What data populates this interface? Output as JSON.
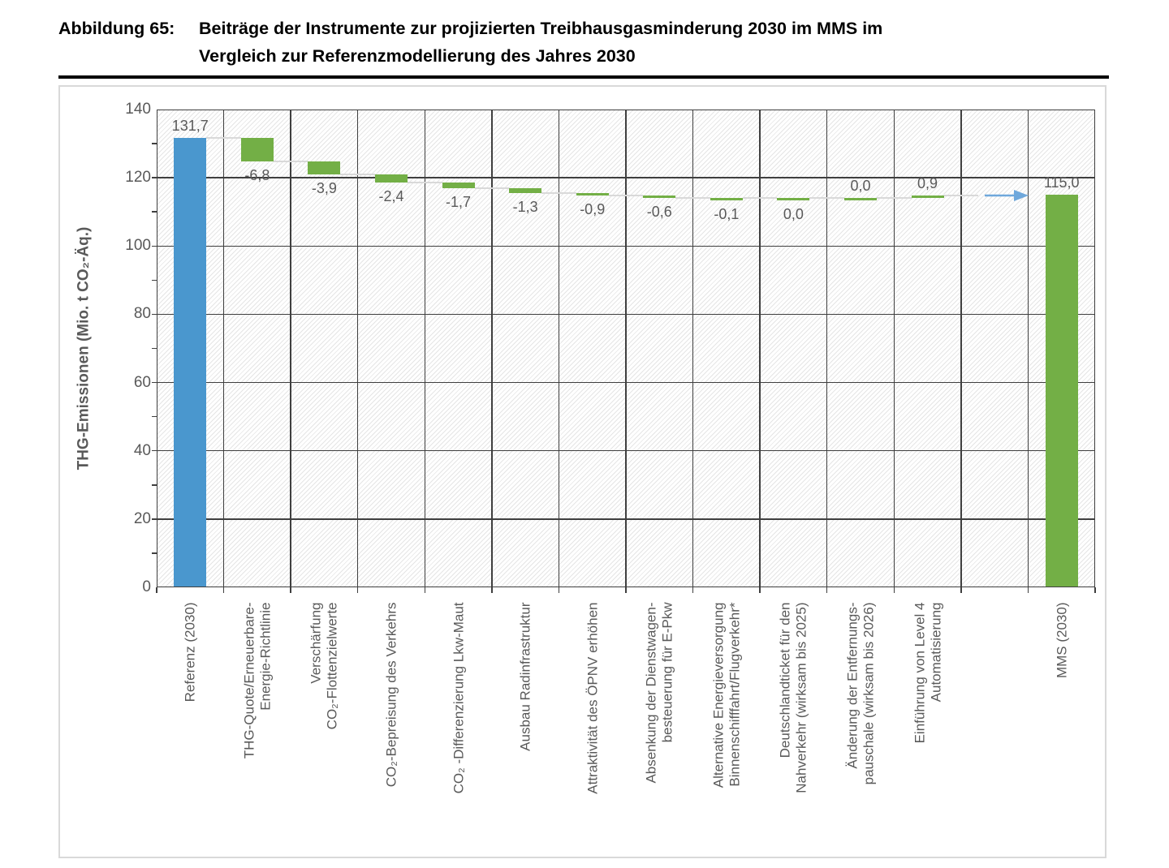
{
  "figure": {
    "caption_label": "Abbildung 65:",
    "caption_lines": [
      "Beiträge der Instrumente zur projizierten Treibhausgasminderung 2030 im MMS im",
      "Vergleich zur Referenzmodellierung des Jahres 2030"
    ]
  },
  "chart_data": {
    "type": "bar",
    "subtype": "waterfall",
    "title": "Beiträge der Instrumente zur projizierten Treibhausgasminderung 2030 im MMS im Vergleich zur Referenzmodellierung des Jahres 2030",
    "ylabel": "THG-Emissionen (Mio. t CO₂-Äq.)",
    "xlabel": "",
    "ylim": [
      0,
      140
    ],
    "ytick_step": 20,
    "yticks": [
      "0",
      "20",
      "40",
      "60",
      "80",
      "100",
      "120",
      "140"
    ],
    "grid": true,
    "legend": "none",
    "colors": {
      "total_start": "#4A97CE",
      "delta": "#73AF46",
      "total_end": "#73AF46",
      "connector": "#D9D9D9",
      "arrow": "#6FA8DC",
      "grid": "#3F3F3F",
      "axis_text": "#595959"
    },
    "columns": [
      {
        "label_lines": [
          "Referenz (2030)"
        ],
        "kind": "start",
        "value": 131.7,
        "display": "131,7",
        "label_pos": "above"
      },
      {
        "label_lines": [
          "THG-Quote/Erneuerbare-",
          "Energie-Richtlinie"
        ],
        "kind": "delta",
        "value": -6.8,
        "display": "-6,8",
        "label_pos": "below"
      },
      {
        "label_lines": [
          "Verschärfung",
          "CO₂-Flottenzielwerte"
        ],
        "kind": "delta",
        "value": -3.9,
        "display": "-3,9",
        "label_pos": "below"
      },
      {
        "label_lines": [
          "CO₂-Bepreisung des Verkehrs"
        ],
        "kind": "delta",
        "value": -2.4,
        "display": "-2,4",
        "label_pos": "below"
      },
      {
        "label_lines": [
          "CO₂ -Differenzierung Lkw-Maut"
        ],
        "kind": "delta",
        "value": -1.7,
        "display": "-1,7",
        "label_pos": "below"
      },
      {
        "label_lines": [
          "Ausbau Radinfrastruktur"
        ],
        "kind": "delta",
        "value": -1.3,
        "display": "-1,3",
        "label_pos": "below"
      },
      {
        "label_lines": [
          "Attraktivität des ÖPNV erhöhen"
        ],
        "kind": "delta",
        "value": -0.9,
        "display": "-0,9",
        "label_pos": "below"
      },
      {
        "label_lines": [
          "Absenkung der Dienstwagen-",
          "besteuerung für E-Pkw"
        ],
        "kind": "delta",
        "value": -0.6,
        "display": "-0,6",
        "label_pos": "below"
      },
      {
        "label_lines": [
          "Alternative Energieversorgung",
          "Binnenschifffahrt/Flugverkehr*"
        ],
        "kind": "delta",
        "value": -0.1,
        "display": "-0,1",
        "label_pos": "below"
      },
      {
        "label_lines": [
          "Deutschlandticket für den",
          "Nahverkehr (wirksam bis 2025)"
        ],
        "kind": "delta",
        "value": 0.0,
        "display": "0,0",
        "label_pos": "below"
      },
      {
        "label_lines": [
          "Änderung der Entfernungs-",
          "pauschale (wirksam bis 2026)"
        ],
        "kind": "delta",
        "value": 0.0,
        "display": "0,0",
        "label_pos": "above"
      },
      {
        "label_lines": [
          "Einführung von Level 4",
          "Automatisierung"
        ],
        "kind": "delta",
        "value": 0.9,
        "display": "0,9",
        "label_pos": "above"
      },
      {
        "label_lines": [],
        "kind": "blank",
        "value": null,
        "display": "",
        "label_pos": ""
      },
      {
        "label_lines": [
          "MMS (2030)"
        ],
        "kind": "end",
        "value": 115.0,
        "display": "115,0",
        "label_pos": "above"
      }
    ]
  }
}
